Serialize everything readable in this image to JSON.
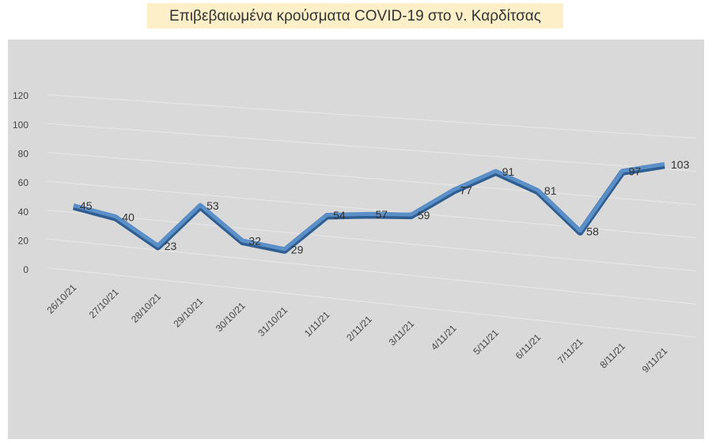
{
  "chart_data": {
    "type": "line",
    "title": "Επιβεβαιωμένα κρούσματα COVID-19 στο ν. Καρδίτσας",
    "categories": [
      "26/10/21",
      "27/10/21",
      "28/10/21",
      "29/10/21",
      "30/10/21",
      "31/10/21",
      "1/11/21",
      "2/11/21",
      "3/11/21",
      "4/11/21",
      "5/11/21",
      "6/11/21",
      "7/11/21",
      "8/11/21",
      "9/11/21"
    ],
    "values": [
      45,
      40,
      23,
      53,
      32,
      29,
      54,
      57,
      59,
      77,
      91,
      81,
      58,
      97,
      103
    ],
    "color": "#5b8fc7",
    "ylim": [
      0,
      120
    ],
    "yticks": [
      0,
      20,
      40,
      60,
      80,
      100,
      120
    ],
    "grid": true
  }
}
